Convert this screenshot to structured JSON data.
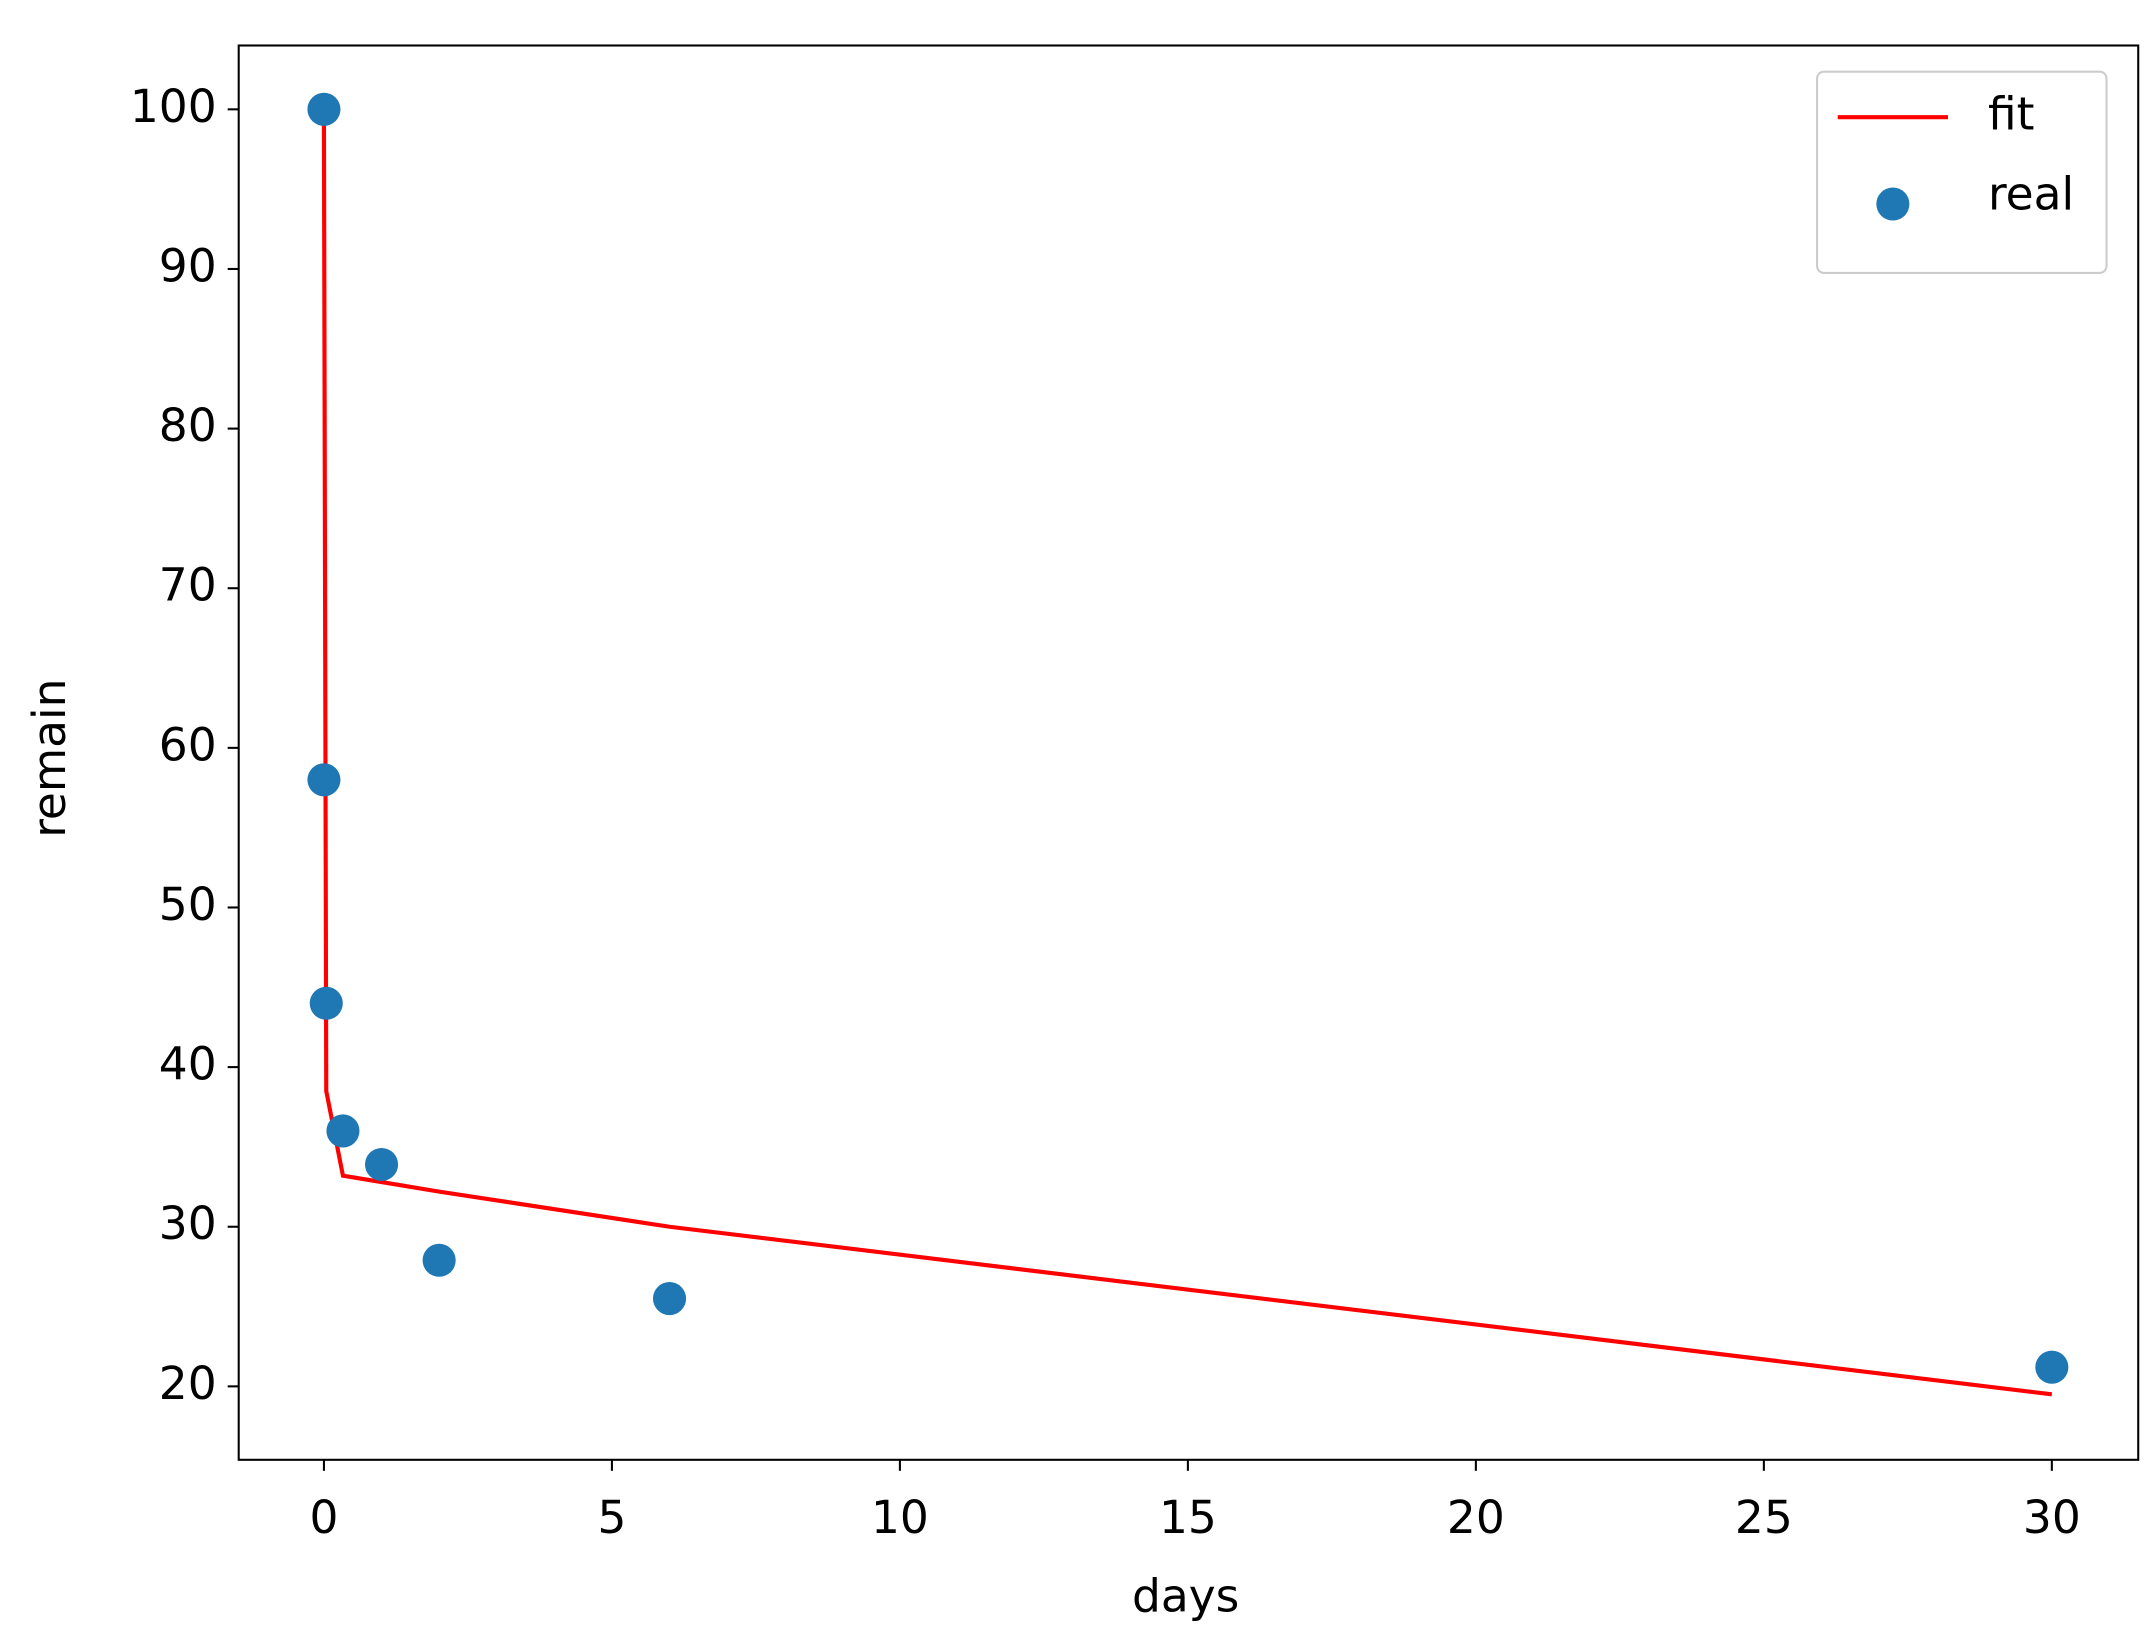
{
  "chart_data": {
    "type": "scatter",
    "xlabel": "days",
    "ylabel": "remain",
    "series": [
      {
        "name": "fit",
        "kind": "line",
        "color": "#ff0000",
        "x": [
          0,
          0.04,
          0.33,
          1,
          2,
          6,
          30
        ],
        "values": [
          99,
          38.5,
          33.2,
          32.8,
          32.2,
          30.0,
          19.5
        ]
      },
      {
        "name": "real",
        "kind": "scatter",
        "color": "#1f77b4",
        "x": [
          0,
          0,
          0.04,
          0.33,
          1,
          2,
          6,
          30
        ],
        "values": [
          100,
          58,
          44,
          36,
          33.9,
          27.9,
          25.5,
          21.2
        ]
      }
    ],
    "xlim": [
      -1.48,
      31.5
    ],
    "ylim": [
      15.4,
      104
    ],
    "xticks": [
      0,
      5,
      10,
      15,
      20,
      25,
      30
    ],
    "yticks": [
      20,
      30,
      40,
      50,
      60,
      70,
      80,
      90,
      100
    ],
    "legend": "upper right",
    "grid": false
  }
}
